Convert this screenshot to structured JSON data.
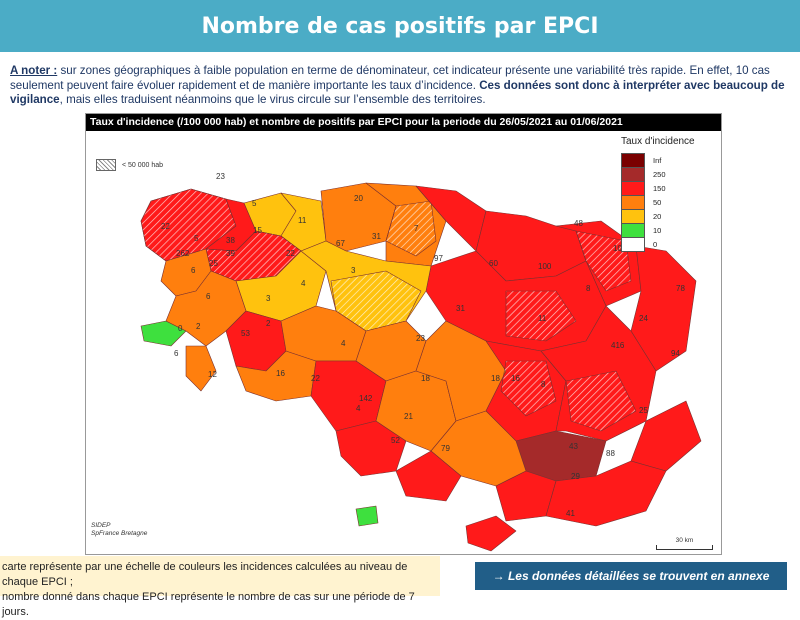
{
  "banner": {
    "title": "Nombre de cas positifs par EPCI"
  },
  "note": {
    "label": "A noter :",
    "text1": " sur zones géographiques à faible population en terme de dénominateur, cet indicateur présente une variabilité très rapide. En effet, 10 cas seulement peuvent faire évoluer rapidement et de manière importante les taux d’incidence. ",
    "bold": "Ces données sont donc à interpréter avec beaucoup de vigilance",
    "text2": ", mais elles traduisent néanmoins que le virus circule sur l’ensemble des territoires."
  },
  "map": {
    "title": "Taux d'incidence (/100 000 hab) et nombre de positifs par EPCI pour la periode du 26/05/2021 au 01/06/2021",
    "hatch_label": "< 50 000 hab",
    "legend_title": "Taux d'incidence",
    "legend": [
      {
        "label": "Inf",
        "color": "#7a0000"
      },
      {
        "label": "250",
        "color": "#a52a2a"
      },
      {
        "label": "150",
        "color": "#ff1a1a"
      },
      {
        "label": "50",
        "color": "#ff7f0e"
      },
      {
        "label": "20",
        "color": "#ffc20e"
      },
      {
        "label": "10",
        "color": "#3ee03e"
      },
      {
        "label": "0",
        "color": "#ffffff"
      }
    ],
    "credit_line1": "SIDEP",
    "credit_line2": "SpFrance Bretagne",
    "scale": "30 km",
    "values": [
      {
        "t": "23"
      },
      {
        "t": "5"
      },
      {
        "t": "11"
      },
      {
        "t": "20"
      },
      {
        "t": "48"
      },
      {
        "t": "22"
      },
      {
        "t": "15"
      },
      {
        "t": "31"
      },
      {
        "t": "7"
      },
      {
        "t": "101"
      },
      {
        "t": "38"
      },
      {
        "t": "97"
      },
      {
        "t": "60"
      },
      {
        "t": "100"
      },
      {
        "t": "6"
      },
      {
        "t": "3"
      },
      {
        "t": "4"
      },
      {
        "t": "78"
      },
      {
        "t": "6"
      },
      {
        "t": "3"
      },
      {
        "t": "2"
      },
      {
        "t": "31"
      },
      {
        "t": "0"
      },
      {
        "t": "2"
      },
      {
        "t": "4"
      },
      {
        "t": "11"
      },
      {
        "t": "24"
      },
      {
        "t": "6"
      },
      {
        "t": "53"
      },
      {
        "t": "23"
      },
      {
        "t": "416"
      },
      {
        "t": "94"
      },
      {
        "t": "12"
      },
      {
        "t": "16"
      },
      {
        "t": "22"
      },
      {
        "t": "18"
      },
      {
        "t": "18"
      },
      {
        "t": "8"
      },
      {
        "t": "142"
      },
      {
        "t": "21"
      },
      {
        "t": "25"
      },
      {
        "t": "4"
      },
      {
        "t": "52"
      },
      {
        "t": "79"
      },
      {
        "t": "43"
      },
      {
        "t": "88"
      },
      {
        "t": "29"
      },
      {
        "t": "41"
      },
      {
        "t": "16"
      },
      {
        "t": "262"
      },
      {
        "t": "5"
      },
      {
        "t": "25"
      },
      {
        "t": "39"
      },
      {
        "t": "22"
      },
      {
        "t": "67"
      },
      {
        "t": "8"
      }
    ]
  },
  "footnote": {
    "line1": "carte représente par une échelle de couleurs les incidences calculées au niveau de chaque EPCI ;",
    "line2": "nombre donné dans chaque EPCI représente le nombre de cas sur une période de 7 jours."
  },
  "annex": {
    "label": "→ Les données détaillées se trouvent en annexe"
  }
}
